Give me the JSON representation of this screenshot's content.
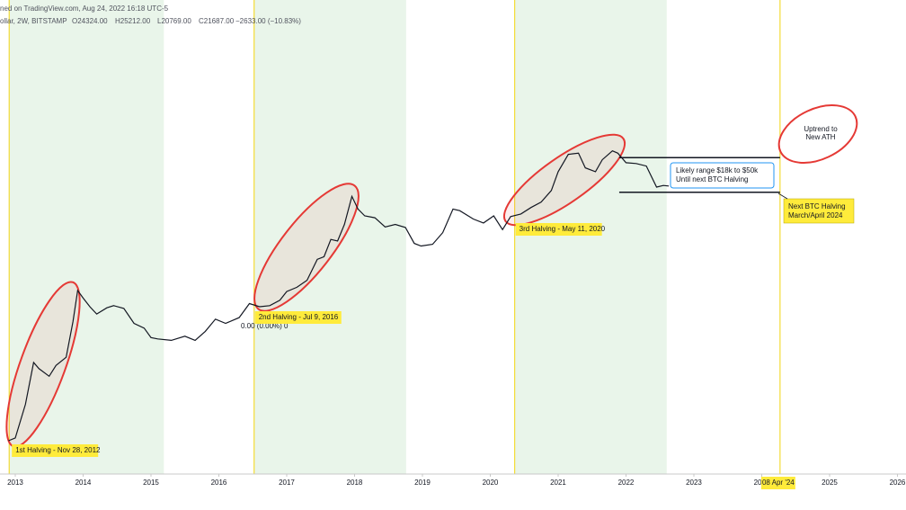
{
  "chart_data": {
    "type": "line",
    "header": "ned on TradingView.com, Aug 24, 2022 16:18 UTC-5",
    "symbol_line": "ollar, 2W, BITSTAMP",
    "ohlc": {
      "open": "O24324.00",
      "high": "H25212.00",
      "low": "L20769.00",
      "close": "C21687.00",
      "change": "−2633.00 (−10.83%)"
    },
    "log_scale": true,
    "xlim": [
      2012.775,
      2026.126
    ],
    "ylim": [
      4.5,
      2340000
    ],
    "xticks": [
      2013,
      2014,
      2015,
      2016,
      2017,
      2018,
      2019,
      2020,
      2021,
      2022,
      2023,
      2024,
      2025,
      2026
    ],
    "color": "#131722",
    "x": [
      2012.9,
      2013.0,
      2013.15,
      2013.27,
      2013.35,
      2013.5,
      2013.6,
      2013.75,
      2013.85,
      2013.92,
      2014.0,
      2014.1,
      2014.2,
      2014.35,
      2014.45,
      2014.6,
      2014.75,
      2014.9,
      2015.0,
      2015.1,
      2015.3,
      2015.5,
      2015.65,
      2015.8,
      2015.95,
      2016.1,
      2016.3,
      2016.45,
      2016.6,
      2016.75,
      2016.9,
      2017.0,
      2017.15,
      2017.3,
      2017.45,
      2017.55,
      2017.65,
      2017.75,
      2017.85,
      2017.96,
      2018.05,
      2018.15,
      2018.3,
      2018.45,
      2018.6,
      2018.75,
      2018.88,
      2018.98,
      2019.15,
      2019.3,
      2019.45,
      2019.55,
      2019.75,
      2019.9,
      2020.05,
      2020.18,
      2020.3,
      2020.45,
      2020.6,
      2020.75,
      2020.9,
      2021.0,
      2021.15,
      2021.3,
      2021.4,
      2021.55,
      2021.65,
      2021.8,
      2021.88,
      2022.0,
      2022.15,
      2022.3,
      2022.45,
      2022.55,
      2022.63
    ],
    "values": [
      12,
      13,
      35,
      120,
      100,
      80,
      110,
      140,
      400,
      1000,
      800,
      620,
      500,
      600,
      640,
      590,
      380,
      330,
      250,
      240,
      230,
      260,
      230,
      300,
      430,
      380,
      450,
      680,
      620,
      640,
      750,
      970,
      1100,
      1350,
      2500,
      2700,
      4500,
      4300,
      7000,
      16000,
      11000,
      9000,
      8500,
      6500,
      7000,
      6400,
      4000,
      3700,
      3900,
      5500,
      11000,
      10500,
      8200,
      7300,
      9000,
      6000,
      8800,
      9500,
      11500,
      13500,
      19000,
      33000,
      55000,
      57000,
      37000,
      33000,
      47000,
      61000,
      57000,
      43000,
      42000,
      39000,
      21000,
      22000,
      21687
    ],
    "shaded_regions": [
      [
        2012.91,
        2015.19
      ],
      [
        2016.52,
        2018.76
      ],
      [
        2020.36,
        2022.6
      ]
    ],
    "halvings": [
      {
        "x": 2012.91,
        "label": "1st Halving - Nov 28, 2012"
      },
      {
        "x": 2016.52,
        "label": "2nd Halving - Jul 9, 2016"
      },
      {
        "x": 2020.36,
        "label": "3rd Halving - May 11, 2020"
      },
      {
        "x": 2024.27,
        "label": "08 Apr '24"
      }
    ],
    "next_halving_note": [
      "Next BTC Halving",
      "March/April 2024"
    ],
    "range_lines": {
      "x": [
        2021.9,
        2024.27
      ],
      "values": [
        50000,
        18000
      ]
    },
    "range_note": [
      "Likely range $18k to $50k",
      "Until next BTC Halving"
    ],
    "uptrend_note": [
      "Uptrend to",
      "New ATH"
    ],
    "zero_label": "0.00 (0.00%) 0"
  }
}
